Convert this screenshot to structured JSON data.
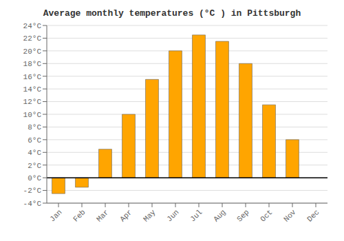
{
  "chart_data": {
    "type": "bar",
    "title": "Average monthly temperatures (°C ) in Pittsburgh",
    "categories": [
      "Jan",
      "Feb",
      "Mar",
      "Apr",
      "May",
      "Jun",
      "Jul",
      "Aug",
      "Sep",
      "Oct",
      "Nov",
      "Dec"
    ],
    "values": [
      -2.5,
      -1.5,
      4.5,
      10.0,
      15.5,
      20.0,
      22.5,
      21.5,
      18.0,
      11.5,
      6.0,
      0.0
    ],
    "color": "#FFA500",
    "ylim": [
      -4,
      24
    ],
    "yticks": [
      {
        "value": -4,
        "label": "-4°C"
      },
      {
        "value": -2,
        "label": "-2°C"
      },
      {
        "value": 0,
        "label": "0°C"
      },
      {
        "value": 2,
        "label": "2°C"
      },
      {
        "value": 4,
        "label": "4°C"
      },
      {
        "value": 6,
        "label": "6°C"
      },
      {
        "value": 8,
        "label": "8°C"
      },
      {
        "value": 10,
        "label": "10°C"
      },
      {
        "value": 12,
        "label": "12°C"
      },
      {
        "value": 14,
        "label": "14°C"
      },
      {
        "value": 16,
        "label": "16°C"
      },
      {
        "value": 18,
        "label": "18°C"
      },
      {
        "value": 20,
        "label": "20°C"
      },
      {
        "value": 22,
        "label": "22°C"
      },
      {
        "value": 24,
        "label": "24°C"
      }
    ],
    "grid": true
  }
}
